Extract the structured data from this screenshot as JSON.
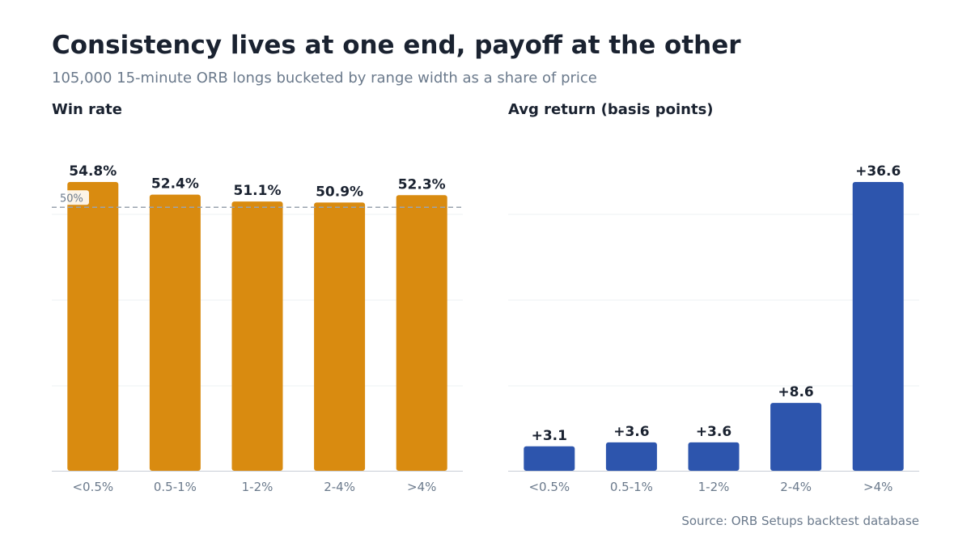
{
  "title": "Consistency lives at one end, payoff at the other",
  "subtitle": "105,000 15-minute ORB longs bucketed by range width as a share of price",
  "source": "Source: ORB Setups backtest database",
  "chart_data": [
    {
      "type": "bar",
      "title": "Win rate",
      "categories": [
        "<0.5%",
        "0.5-1%",
        "1-2%",
        "2-4%",
        ">4%"
      ],
      "values": [
        54.8,
        52.4,
        51.1,
        50.9,
        52.3
      ],
      "value_labels": [
        "54.8%",
        "52.4%",
        "51.1%",
        "50.9%",
        "52.3%"
      ],
      "ylim": [
        0,
        54.8
      ],
      "reference_line": {
        "value": 50,
        "label": "50%"
      },
      "grid": true,
      "color": "#d98b10"
    },
    {
      "type": "bar",
      "title": "Avg return (basis points)",
      "categories": [
        "<0.5%",
        "0.5-1%",
        "1-2%",
        "2-4%",
        ">4%"
      ],
      "values": [
        3.1,
        3.6,
        3.6,
        8.6,
        36.6
      ],
      "value_labels": [
        "+3.1",
        "+3.6",
        "+3.6",
        "+8.6",
        "+36.6"
      ],
      "ylim": [
        0,
        36.6
      ],
      "grid": true,
      "color": "#2d55ad"
    }
  ]
}
